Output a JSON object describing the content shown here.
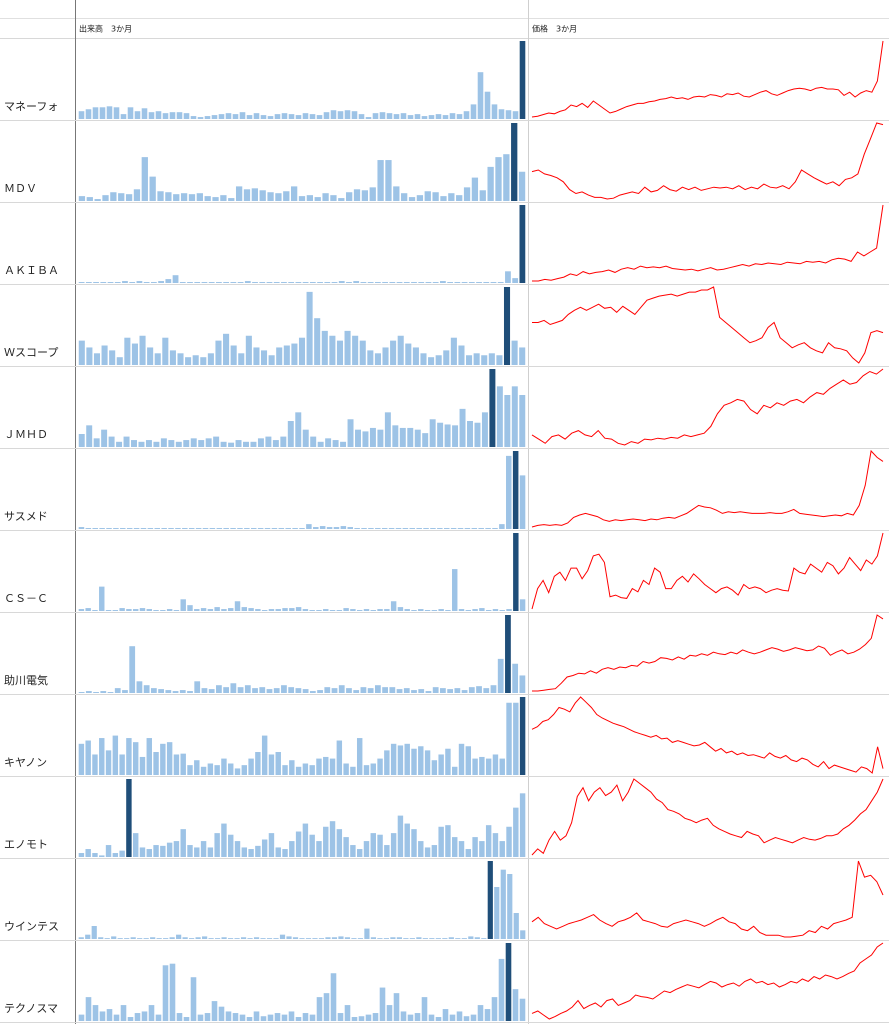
{
  "headers": {
    "volume": "出来高　3か月",
    "price": "価格　3か月"
  },
  "colors": {
    "bar": "#9dc3e6",
    "bar_highlight": "#1f4e79",
    "line": "#ff0000"
  },
  "rows": [
    {
      "name": "マネーフォ",
      "volume": [
        8,
        10,
        12,
        12,
        13,
        12,
        5,
        12,
        8,
        11,
        7,
        8,
        6,
        7,
        7,
        6,
        3,
        2,
        3,
        4,
        5,
        6,
        5,
        7,
        4,
        6,
        4,
        3,
        5,
        6,
        5,
        4,
        6,
        5,
        4,
        7,
        9,
        8,
        9,
        8,
        5,
        2,
        6,
        7,
        6,
        5,
        6,
        4,
        5,
        3,
        4,
        5,
        4,
        6,
        5,
        8,
        15,
        48,
        28,
        15,
        10,
        9,
        8,
        80
      ],
      "price": [
        5,
        6,
        8,
        10,
        9,
        12,
        14,
        20,
        18,
        22,
        17,
        25,
        20,
        15,
        10,
        12,
        15,
        18,
        20,
        22,
        22,
        24,
        25,
        27,
        28,
        30,
        28,
        29,
        27,
        30,
        31,
        30,
        33,
        32,
        30,
        34,
        33,
        35,
        31,
        30,
        33,
        36,
        38,
        34,
        32,
        35,
        38,
        40,
        41,
        40,
        38,
        41,
        42,
        40,
        40,
        39,
        32,
        36,
        30,
        35,
        38,
        36,
        50,
        100
      ]
    },
    {
      "name": "ＭＤＶ",
      "volume": [
        5,
        4,
        2,
        6,
        9,
        8,
        7,
        12,
        45,
        25,
        10,
        9,
        7,
        8,
        7,
        8,
        5,
        4,
        6,
        3,
        15,
        12,
        13,
        11,
        9,
        8,
        10,
        15,
        5,
        6,
        4,
        8,
        6,
        3,
        9,
        12,
        11,
        14,
        42,
        42,
        15,
        8,
        4,
        6,
        10,
        9,
        5,
        8,
        6,
        14,
        24,
        11,
        35,
        45,
        48,
        80,
        30
      ],
      "price": [
        38,
        40,
        35,
        33,
        30,
        25,
        15,
        10,
        12,
        8,
        5,
        5,
        3,
        4,
        8,
        10,
        12,
        10,
        18,
        12,
        14,
        20,
        15,
        13,
        18,
        15,
        18,
        14,
        16,
        18,
        17,
        18,
        16,
        20,
        15,
        18,
        16,
        22,
        18,
        17,
        20,
        16,
        25,
        40,
        35,
        30,
        26,
        22,
        25,
        20,
        28,
        30,
        35,
        60,
        80,
        100,
        98
      ]
    },
    {
      "name": "ＡＫＩＢＡ",
      "volume": [
        1,
        1,
        1,
        1,
        1,
        1,
        2,
        1,
        2,
        1,
        1,
        2,
        4,
        8,
        1,
        1,
        1,
        1,
        1,
        1,
        1,
        1,
        1,
        2,
        1,
        1,
        1,
        1,
        1,
        1,
        1,
        1,
        1,
        1,
        1,
        1,
        2,
        1,
        2,
        1,
        1,
        1,
        1,
        1,
        1,
        1,
        1,
        1,
        1,
        1,
        2,
        1,
        1,
        1,
        1,
        1,
        1,
        1,
        1,
        12,
        5,
        80
      ],
      "price": [
        3,
        3,
        5,
        4,
        6,
        8,
        12,
        10,
        15,
        12,
        14,
        15,
        17,
        14,
        18,
        20,
        18,
        22,
        20,
        21,
        20,
        22,
        19,
        18,
        17,
        18,
        16,
        18,
        20,
        17,
        18,
        20,
        22,
        24,
        22,
        25,
        24,
        26,
        25,
        24,
        27,
        26,
        25,
        28,
        27,
        28,
        26,
        30,
        32,
        31,
        28,
        40,
        35,
        40,
        45,
        100
      ]
    },
    {
      "name": "Ｗスコープ",
      "volume": [
        25,
        18,
        12,
        20,
        15,
        8,
        28,
        22,
        30,
        18,
        12,
        28,
        15,
        12,
        8,
        10,
        8,
        12,
        25,
        32,
        20,
        12,
        30,
        18,
        15,
        10,
        18,
        20,
        22,
        28,
        75,
        48,
        35,
        30,
        25,
        35,
        30,
        25,
        15,
        12,
        18,
        25,
        30,
        22,
        18,
        12,
        8,
        10,
        15,
        28,
        20,
        10,
        12,
        10,
        12,
        10,
        80,
        25,
        18
      ],
      "price": [
        40,
        40,
        42,
        38,
        40,
        42,
        48,
        52,
        55,
        52,
        55,
        58,
        54,
        55,
        50,
        56,
        52,
        48,
        55,
        62,
        64,
        66,
        67,
        68,
        66,
        68,
        70,
        70,
        72,
        72,
        75,
        45,
        40,
        35,
        30,
        25,
        20,
        22,
        25,
        35,
        40,
        25,
        20,
        15,
        18,
        20,
        15,
        12,
        10,
        20,
        15,
        14,
        12,
        5,
        0,
        10,
        30,
        32,
        30
      ]
    },
    {
      "name": "ＪＭＨＤ",
      "volume": [
        15,
        25,
        10,
        20,
        12,
        6,
        12,
        8,
        6,
        8,
        6,
        10,
        8,
        6,
        8,
        10,
        8,
        10,
        12,
        6,
        5,
        8,
        6,
        6,
        10,
        12,
        8,
        12,
        30,
        40,
        20,
        12,
        6,
        10,
        8,
        6,
        32,
        20,
        18,
        22,
        20,
        40,
        25,
        22,
        22,
        20,
        16,
        32,
        28,
        26,
        25,
        44,
        30,
        28,
        40,
        90,
        70,
        60,
        70,
        60
      ],
      "price": [
        20,
        15,
        10,
        18,
        20,
        15,
        22,
        25,
        20,
        18,
        25,
        16,
        15,
        10,
        8,
        12,
        10,
        15,
        14,
        16,
        15,
        17,
        16,
        20,
        18,
        20,
        22,
        30,
        45,
        55,
        58,
        62,
        60,
        50,
        45,
        55,
        52,
        58,
        55,
        60,
        62,
        58,
        65,
        70,
        68,
        75,
        80,
        85,
        80,
        82,
        90,
        95,
        92,
        98
      ]
    },
    {
      "name": "サスメド",
      "volume": [
        2,
        1,
        1,
        1,
        1,
        1,
        1,
        1,
        1,
        1,
        1,
        1,
        1,
        1,
        1,
        1,
        1,
        1,
        1,
        1,
        1,
        1,
        1,
        1,
        1,
        1,
        1,
        1,
        1,
        1,
        1,
        1,
        1,
        5,
        2,
        3,
        2,
        2,
        3,
        2,
        1,
        1,
        1,
        1,
        1,
        1,
        1,
        1,
        1,
        1,
        1,
        1,
        1,
        1,
        1,
        1,
        1,
        1,
        1,
        1,
        1,
        5,
        75,
        80,
        55
      ],
      "price": [
        3,
        5,
        6,
        5,
        6,
        5,
        8,
        15,
        18,
        20,
        18,
        16,
        12,
        10,
        12,
        11,
        12,
        13,
        12,
        11,
        13,
        12,
        14,
        15,
        14,
        17,
        20,
        25,
        30,
        28,
        27,
        24,
        20,
        22,
        21,
        22,
        21,
        20,
        20,
        20,
        21,
        20,
        20,
        22,
        25,
        20,
        19,
        18,
        17,
        16,
        17,
        18,
        17,
        20,
        18,
        30,
        55,
        98,
        90,
        85
      ]
    },
    {
      "name": "ＣＳ－Ｃ",
      "volume": [
        2,
        3,
        1,
        25,
        1,
        1,
        3,
        2,
        2,
        3,
        2,
        1,
        1,
        2,
        1,
        12,
        6,
        2,
        3,
        2,
        4,
        2,
        3,
        10,
        4,
        3,
        2,
        1,
        2,
        2,
        3,
        3,
        4,
        2,
        1,
        1,
        2,
        1,
        1,
        3,
        2,
        1,
        2,
        1,
        2,
        2,
        10,
        4,
        2,
        1,
        2,
        1,
        1,
        2,
        1,
        43,
        2,
        1,
        2,
        3,
        1,
        2,
        1,
        2,
        80,
        12
      ],
      "price": [
        5,
        30,
        40,
        25,
        45,
        50,
        40,
        55,
        55,
        42,
        52,
        70,
        72,
        62,
        20,
        22,
        19,
        18,
        30,
        26,
        40,
        35,
        55,
        50,
        30,
        30,
        40,
        45,
        38,
        48,
        42,
        35,
        30,
        25,
        30,
        32,
        28,
        22,
        35,
        30,
        32,
        30,
        25,
        28,
        30,
        28,
        27,
        55,
        50,
        48,
        60,
        55,
        50,
        62,
        58,
        48,
        55,
        68,
        60,
        52,
        65,
        60,
        70,
        98
      ]
    },
    {
      "name": "助川電気",
      "volume": [
        1,
        2,
        1,
        2,
        1,
        5,
        3,
        48,
        12,
        8,
        5,
        4,
        3,
        2,
        3,
        2,
        12,
        5,
        4,
        8,
        6,
        10,
        6,
        8,
        5,
        6,
        4,
        5,
        8,
        6,
        5,
        4,
        2,
        3,
        6,
        5,
        8,
        5,
        3,
        6,
        5,
        8,
        6,
        6,
        4,
        5,
        3,
        4,
        2,
        6,
        5,
        4,
        5,
        3,
        6,
        7,
        5,
        8,
        35,
        80,
        30,
        18
      ],
      "price": [
        2,
        2,
        3,
        4,
        5,
        12,
        20,
        22,
        25,
        24,
        28,
        25,
        30,
        32,
        30,
        33,
        32,
        35,
        34,
        40,
        38,
        40,
        45,
        44,
        42,
        46,
        43,
        48,
        47,
        50,
        48,
        52,
        50,
        49,
        52,
        50,
        55,
        52,
        50,
        52,
        55,
        58,
        56,
        53,
        55,
        58,
        56,
        54,
        55,
        60,
        57,
        48,
        52,
        55,
        50,
        52,
        56,
        62,
        70,
        100,
        95
      ]
    },
    {
      "name": "キヤノン",
      "volume": [
        38,
        42,
        25,
        45,
        30,
        48,
        25,
        45,
        40,
        22,
        45,
        28,
        38,
        40,
        25,
        26,
        12,
        18,
        10,
        14,
        12,
        20,
        14,
        8,
        12,
        20,
        28,
        48,
        25,
        28,
        12,
        18,
        10,
        14,
        12,
        20,
        22,
        20,
        42,
        14,
        10,
        45,
        12,
        14,
        20,
        30,
        38,
        36,
        38,
        32,
        35,
        30,
        18,
        25,
        32,
        10,
        38,
        35,
        20,
        22,
        20,
        25,
        20,
        88,
        88,
        95
      ],
      "price": [
        55,
        58,
        64,
        66,
        72,
        80,
        78,
        75,
        85,
        92,
        86,
        80,
        72,
        68,
        65,
        62,
        60,
        58,
        55,
        52,
        50,
        48,
        46,
        48,
        44,
        45,
        40,
        42,
        40,
        38,
        36,
        37,
        40,
        35,
        30,
        33,
        28,
        30,
        26,
        28,
        25,
        26,
        24,
        22,
        28,
        24,
        22,
        25,
        20,
        18,
        22,
        20,
        15,
        12,
        18,
        10,
        14,
        12,
        10,
        8,
        6,
        12,
        10,
        5,
        35,
        10
      ]
    },
    {
      "name": "エノモト",
      "volume": [
        5,
        10,
        5,
        2,
        15,
        5,
        8,
        98,
        30,
        12,
        10,
        15,
        14,
        18,
        20,
        35,
        15,
        12,
        20,
        12,
        30,
        42,
        28,
        20,
        12,
        10,
        14,
        22,
        30,
        12,
        10,
        20,
        32,
        42,
        28,
        20,
        38,
        45,
        35,
        25,
        15,
        10,
        20,
        30,
        28,
        15,
        30,
        52,
        42,
        35,
        20,
        12,
        15,
        38,
        40,
        25,
        20,
        10,
        25,
        20,
        40,
        30,
        20,
        38,
        62,
        80
      ],
      "price": [
        8,
        15,
        10,
        25,
        35,
        25,
        30,
        45,
        75,
        85,
        70,
        80,
        85,
        76,
        80,
        88,
        70,
        80,
        95,
        90,
        85,
        80,
        72,
        68,
        60,
        58,
        55,
        50,
        48,
        45,
        48,
        50,
        42,
        38,
        35,
        32,
        30,
        28,
        35,
        32,
        30,
        22,
        25,
        28,
        26,
        24,
        22,
        25,
        28,
        26,
        25,
        27,
        30,
        30,
        32,
        38,
        42,
        48,
        55,
        60,
        70,
        80,
        95
      ]
    },
    {
      "name": "ウインテス",
      "volume": [
        2,
        5,
        15,
        2,
        1,
        3,
        1,
        1,
        2,
        1,
        1,
        2,
        1,
        1,
        2,
        5,
        2,
        1,
        2,
        3,
        1,
        1,
        2,
        1,
        1,
        2,
        1,
        2,
        1,
        1,
        1,
        5,
        3,
        2,
        1,
        1,
        1,
        1,
        2,
        2,
        3,
        2,
        1,
        1,
        12,
        2,
        1,
        1,
        2,
        2,
        1,
        1,
        2,
        1,
        1,
        1,
        1,
        2,
        1,
        1,
        3,
        2,
        1,
        90,
        60,
        80,
        75,
        30,
        10
      ],
      "price": [
        20,
        25,
        18,
        15,
        12,
        15,
        18,
        20,
        22,
        25,
        28,
        22,
        18,
        15,
        20,
        22,
        25,
        30,
        22,
        20,
        18,
        15,
        14,
        18,
        20,
        22,
        20,
        18,
        15,
        18,
        22,
        25,
        20,
        18,
        12,
        10,
        15,
        8,
        5,
        5,
        5,
        3,
        3,
        4,
        5,
        10,
        8,
        15,
        12,
        18,
        20,
        22,
        25,
        88,
        70,
        72,
        65,
        50
      ]
    },
    {
      "name": "テクノスマ",
      "volume": [
        8,
        30,
        20,
        12,
        15,
        8,
        20,
        5,
        10,
        12,
        20,
        8,
        70,
        72,
        10,
        5,
        55,
        8,
        10,
        25,
        18,
        12,
        10,
        8,
        5,
        12,
        6,
        8,
        10,
        8,
        12,
        5,
        10,
        8,
        30,
        35,
        60,
        10,
        20,
        5,
        6,
        8,
        10,
        42,
        20,
        35,
        12,
        8,
        10,
        30,
        8,
        5,
        15,
        8,
        12,
        6,
        8,
        20,
        15,
        30,
        78,
        98,
        40,
        28
      ],
      "price": [
        12,
        15,
        10,
        5,
        8,
        12,
        15,
        20,
        28,
        18,
        22,
        25,
        20,
        28,
        30,
        22,
        25,
        28,
        35,
        33,
        32,
        30,
        35,
        40,
        38,
        42,
        45,
        48,
        46,
        44,
        48,
        52,
        50,
        45,
        48,
        50,
        46,
        52,
        55,
        50,
        52,
        48,
        50,
        45,
        48,
        52,
        50,
        55,
        52,
        58,
        55,
        60,
        58,
        55,
        58,
        62,
        65,
        75,
        80,
        85,
        95,
        100
      ]
    }
  ]
}
